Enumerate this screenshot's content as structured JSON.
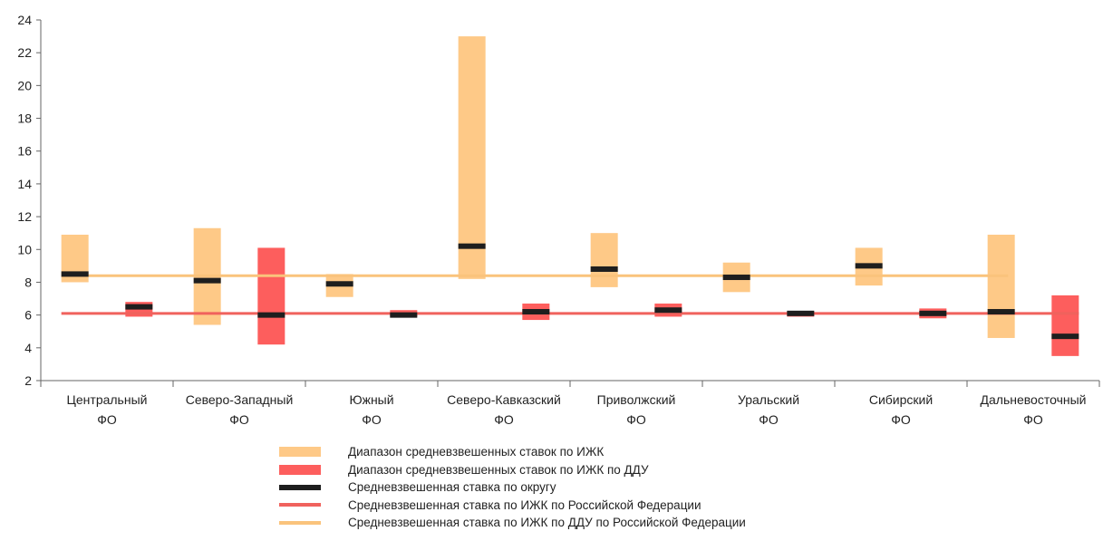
{
  "chart_data": {
    "type": "range-bar",
    "ylim": [
      2,
      24
    ],
    "yticks": [
      "2",
      "4",
      "6",
      "8",
      "10",
      "12",
      "14",
      "16",
      "18",
      "20",
      "22",
      "24"
    ],
    "categories": [
      [
        "Центральный",
        "ФО"
      ],
      [
        "Северо-Западный",
        "ФО"
      ],
      [
        "Южный",
        "ФО"
      ],
      [
        "Северо-Кавказский",
        "ФО"
      ],
      [
        "Приволжский",
        "ФО"
      ],
      [
        "Уральский",
        "ФО"
      ],
      [
        "Сибирский",
        "ФО"
      ],
      [
        "Дальневосточный",
        "ФО"
      ]
    ],
    "izhk_range": [
      [
        8.0,
        10.9
      ],
      [
        5.4,
        11.3
      ],
      [
        7.1,
        8.5
      ],
      [
        8.2,
        23.0
      ],
      [
        7.7,
        11.0
      ],
      [
        7.4,
        9.2
      ],
      [
        7.8,
        10.1
      ],
      [
        4.6,
        10.9
      ]
    ],
    "izhk_avg": [
      8.5,
      8.1,
      7.9,
      10.2,
      8.8,
      8.3,
      9.0,
      6.2
    ],
    "ddu_range": [
      [
        5.9,
        6.8
      ],
      [
        4.2,
        10.1
      ],
      [
        5.9,
        6.3
      ],
      [
        5.7,
        6.7
      ],
      [
        5.9,
        6.7
      ],
      [
        5.9,
        6.2
      ],
      [
        5.8,
        6.4
      ],
      [
        3.5,
        7.2
      ]
    ],
    "ddu_avg": [
      6.5,
      6.0,
      6.0,
      6.2,
      6.3,
      6.1,
      6.1,
      4.7
    ],
    "rf_izhk_rate": 6.1,
    "rf_izhk_ddu_rate": 8.4,
    "colors": {
      "izhk": "#fec987",
      "ddu": "#fd5e5d",
      "avg": "#1e1e1e",
      "rf_line_red": "#f0625d",
      "rf_line_orange": "#fac37c",
      "axis": "#666666"
    }
  },
  "legend": [
    {
      "label": "Диапазон средневзвешенных ставок по ИЖК",
      "kind": "box",
      "color": "#fec987"
    },
    {
      "label": "Диапазон средневзвешенных ставок по ИЖК по ДДУ",
      "kind": "box",
      "color": "#fd5e5d"
    },
    {
      "label": "Средневзвешенная ставка по округу",
      "kind": "thick-line",
      "color": "#1e1e1e"
    },
    {
      "label": "Средневзвешенная ставка по ИЖК по Российской Федерации",
      "kind": "line",
      "color": "#f0625d"
    },
    {
      "label": "Средневзвешенная ставка по ИЖК по ДДУ по Российской Федерации",
      "kind": "line",
      "color": "#fac37c"
    }
  ]
}
